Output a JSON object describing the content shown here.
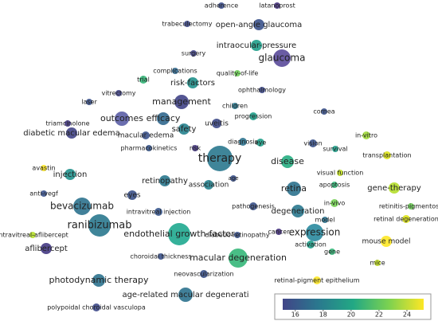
{
  "chart_data": {
    "type": "network",
    "nodes": [
      {
        "label": "adherence",
        "color": "#3d4f8c"
      },
      {
        "label": "latanoprost",
        "color": "#46337e"
      },
      {
        "label": "trabeculectomy",
        "color": "#3e4a89"
      },
      {
        "label": "open-angle glaucoma",
        "color": "#3b528b"
      },
      {
        "label": "intraocular-pressure",
        "color": "#1f9e89"
      },
      {
        "label": "surgery",
        "color": "#414487"
      },
      {
        "label": "glaucoma",
        "color": "#5a4a9a"
      },
      {
        "label": "complications",
        "color": "#31688e"
      },
      {
        "label": "quality-of-life",
        "color": "#6ece58"
      },
      {
        "label": "trial",
        "color": "#35b779"
      },
      {
        "label": "risk-factors",
        "color": "#21918c"
      },
      {
        "label": "ophthalmology",
        "color": "#3e4a89"
      },
      {
        "label": "vitrectomy",
        "color": "#414487"
      },
      {
        "label": "laser",
        "color": "#3b528b"
      },
      {
        "label": "management",
        "color": "#414487"
      },
      {
        "label": "children",
        "color": "#2a788e"
      },
      {
        "label": "outcomes",
        "color": "#5b5ea6"
      },
      {
        "label": "efficacy",
        "color": "#31688e"
      },
      {
        "label": "cornea",
        "color": "#3b528b"
      },
      {
        "label": "progression",
        "color": "#1f9e89"
      },
      {
        "label": "uveitis",
        "color": "#3e4a89"
      },
      {
        "label": "triamcinolone",
        "color": "#443983"
      },
      {
        "label": "macular edema",
        "color": "#3b528b"
      },
      {
        "label": "safety",
        "color": "#26828e"
      },
      {
        "label": "diabetic macular edema",
        "color": "#414487"
      },
      {
        "label": "pharmacokinetics",
        "color": "#39568c"
      },
      {
        "label": "risk",
        "color": "#453781"
      },
      {
        "label": "diagnosis",
        "color": "#2c728e"
      },
      {
        "label": "eye",
        "color": "#1f9e89"
      },
      {
        "label": "vision",
        "color": "#3b528b"
      },
      {
        "label": "in-vitro",
        "color": "#a0da39"
      },
      {
        "label": "survival",
        "color": "#1f9e89"
      },
      {
        "label": "transplantation",
        "color": "#dde318"
      },
      {
        "label": "therapy",
        "color": "#2a788e"
      },
      {
        "label": "disease",
        "color": "#26ad81"
      },
      {
        "label": "avastin",
        "color": "#fde725"
      },
      {
        "label": "injection",
        "color": "#21918c"
      },
      {
        "label": "visual function",
        "color": "#c2df23"
      },
      {
        "label": "age",
        "color": "#3b528b"
      },
      {
        "label": "retinopathy",
        "color": "#2a788e"
      },
      {
        "label": "association",
        "color": "#26828e"
      },
      {
        "label": "retina",
        "color": "#2c728e"
      },
      {
        "label": "apoptosis",
        "color": "#35b779"
      },
      {
        "label": "gene-therapy",
        "color": "#b5de2b"
      },
      {
        "label": "anti-vegf",
        "color": "#3b528b"
      },
      {
        "label": "eyes",
        "color": "#3b528b"
      },
      {
        "label": "bevacizumab",
        "color": "#2c728e"
      },
      {
        "label": "intravitreal injection",
        "color": "#39568c"
      },
      {
        "label": "retinitis-pigmentosa",
        "color": "#6ece58"
      },
      {
        "label": "pathogenesis",
        "color": "#3b528b"
      },
      {
        "label": "degeneration",
        "color": "#2a788e"
      },
      {
        "label": "in-vivo",
        "color": "#75d054"
      },
      {
        "label": "retinal degeneration",
        "color": "#dde318"
      },
      {
        "label": "ranibizumab",
        "color": "#2a788e"
      },
      {
        "label": "model",
        "color": "#2c728e"
      },
      {
        "label": "intravitreal-aflibercept",
        "color": "#b5de2b"
      },
      {
        "label": "expression",
        "color": "#2a8a9e"
      },
      {
        "label": "endothelial growth-factor",
        "color": "#1fa88f"
      },
      {
        "label": "diabetic-retinopathy",
        "color": "#3b528b"
      },
      {
        "label": "cancer",
        "color": "#46337e"
      },
      {
        "label": "aflibercept",
        "color": "#443983"
      },
      {
        "label": "mouse model",
        "color": "#fde725"
      },
      {
        "label": "activation",
        "color": "#1f9e89"
      },
      {
        "label": "choroidal thickness",
        "color": "#3b528b"
      },
      {
        "label": "gene",
        "color": "#35b779"
      },
      {
        "label": "macular degeneration",
        "color": "#35b779"
      },
      {
        "label": "mice",
        "color": "#c2df23"
      },
      {
        "label": "photodynamic therapy",
        "color": "#2c728e"
      },
      {
        "label": "neovascularization",
        "color": "#3b528b"
      },
      {
        "label": "retinal-pigment epithelium",
        "color": "#fde725"
      },
      {
        "label": "age-related macular degenerati",
        "color": "#2c728e"
      },
      {
        "label": "polypoidal choroidal vasculopa",
        "color": "#3e4a89"
      }
    ],
    "colorbar": {
      "range": [
        15.1,
        25.2
      ],
      "ticks": [
        16,
        18,
        20,
        22,
        24
      ],
      "colors": [
        "#414487",
        "#2a788e",
        "#22a884",
        "#7ad151",
        "#fde725"
      ]
    }
  }
}
